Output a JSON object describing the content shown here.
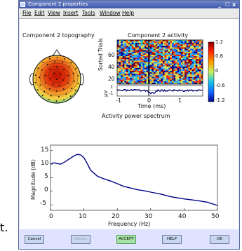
{
  "window": {
    "title": "Component 2 properties",
    "minimize": "_",
    "maximize": "□",
    "close": "x"
  },
  "menu": [
    "File",
    "Edit",
    "View",
    "Insert",
    "Tools",
    "Window",
    "Help"
  ],
  "topography": {
    "title": "Component 2 topography"
  },
  "erpimage": {
    "title": "Component 2 activity",
    "ylabel": "Sorted Trials",
    "yticks": [
      "60",
      "40",
      "20"
    ],
    "colorbar_ticks": [
      "1.2",
      "0.6",
      "0",
      "-0.6",
      "-1.2"
    ],
    "erp_ylabel": "μV",
    "erp_yticks": [
      "1",
      "-1"
    ],
    "xticks": [
      "-1",
      "0",
      "1"
    ],
    "xlabel": "Time (ms)"
  },
  "spectrum": {
    "title": "Activity power spectrum",
    "ylabel": "Magnitude (dB)",
    "yticks": [
      "15",
      "10",
      "5",
      "0",
      "-5"
    ],
    "xticks": [
      "0",
      "10",
      "20",
      "30",
      "40",
      "50"
    ],
    "xlabel": "Frequency (Hz)"
  },
  "chart_data": {
    "type": "line",
    "title": "Activity power spectrum",
    "xlabel": "Frequency (Hz)",
    "ylabel": "Magnitude (dB)",
    "xlim": [
      0,
      50
    ],
    "ylim": [
      -7,
      17
    ],
    "x": [
      0,
      1,
      2,
      3,
      4,
      5,
      6,
      7,
      8,
      9,
      10,
      11,
      12,
      14,
      16,
      18,
      20,
      22,
      24,
      26,
      28,
      30,
      33,
      36,
      40,
      44,
      47,
      50
    ],
    "y": [
      10,
      10.5,
      10.2,
      10.0,
      10.6,
      11.4,
      12.2,
      13.0,
      13.6,
      13.4,
      12.4,
      10.2,
      7.8,
      5.6,
      4.6,
      3.8,
      2.8,
      1.8,
      1.2,
      0.6,
      0.2,
      -0.3,
      -1.0,
      -2.0,
      -2.8,
      -3.4,
      -4.0,
      -5.2
    ],
    "color": "#00008b"
  },
  "buttons": {
    "cancel": "Cancel",
    "values": "Values",
    "accept": "ACCEPT",
    "help": "HELP",
    "ok": "OK"
  },
  "outside_text": "t."
}
